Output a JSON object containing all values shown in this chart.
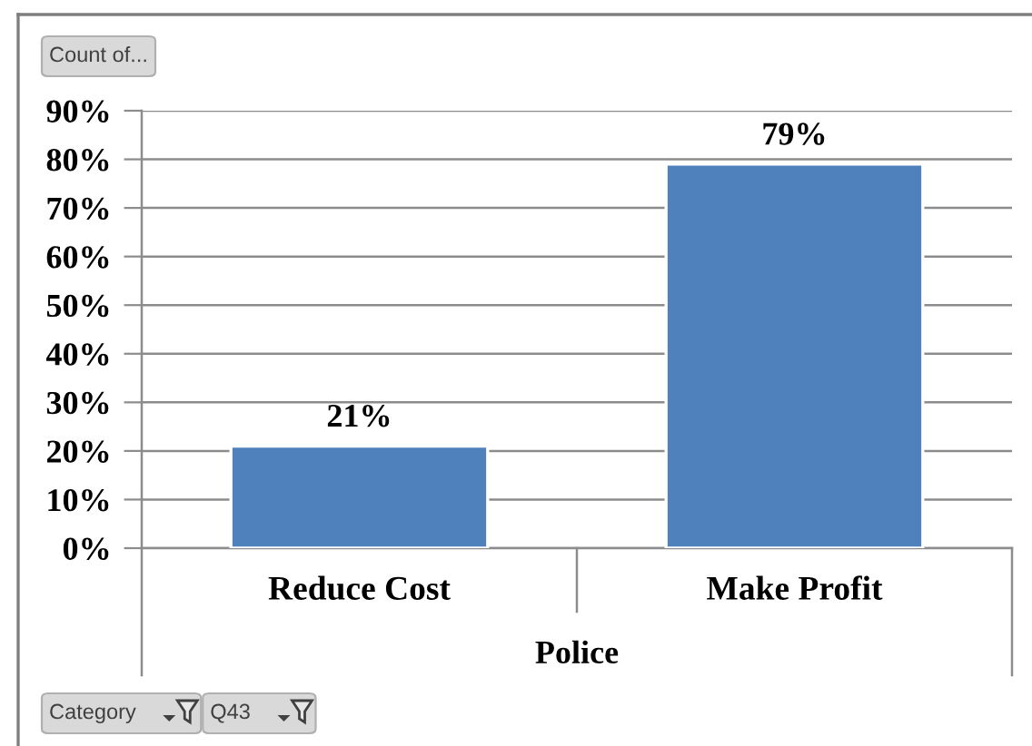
{
  "chart_data": {
    "type": "bar",
    "categories": [
      "Reduce Cost",
      "Make Profit"
    ],
    "values": [
      21,
      79
    ],
    "value_labels": [
      "21%",
      "79%"
    ],
    "color": "#4f81bd",
    "xlabel": "Police",
    "ylim": [
      0,
      90
    ],
    "yticks": [
      {
        "value": 0,
        "label": "0%"
      },
      {
        "value": 10,
        "label": "10%"
      },
      {
        "value": 20,
        "label": "20%"
      },
      {
        "value": 30,
        "label": "30%"
      },
      {
        "value": 40,
        "label": "40%"
      },
      {
        "value": 50,
        "label": "50%"
      },
      {
        "value": 60,
        "label": "60%"
      },
      {
        "value": 70,
        "label": "70%"
      },
      {
        "value": 80,
        "label": "80%"
      },
      {
        "value": 90,
        "label": "90%"
      }
    ],
    "grid": "y",
    "annotations": [
      "Count of...",
      "Category",
      "Q43"
    ]
  }
}
